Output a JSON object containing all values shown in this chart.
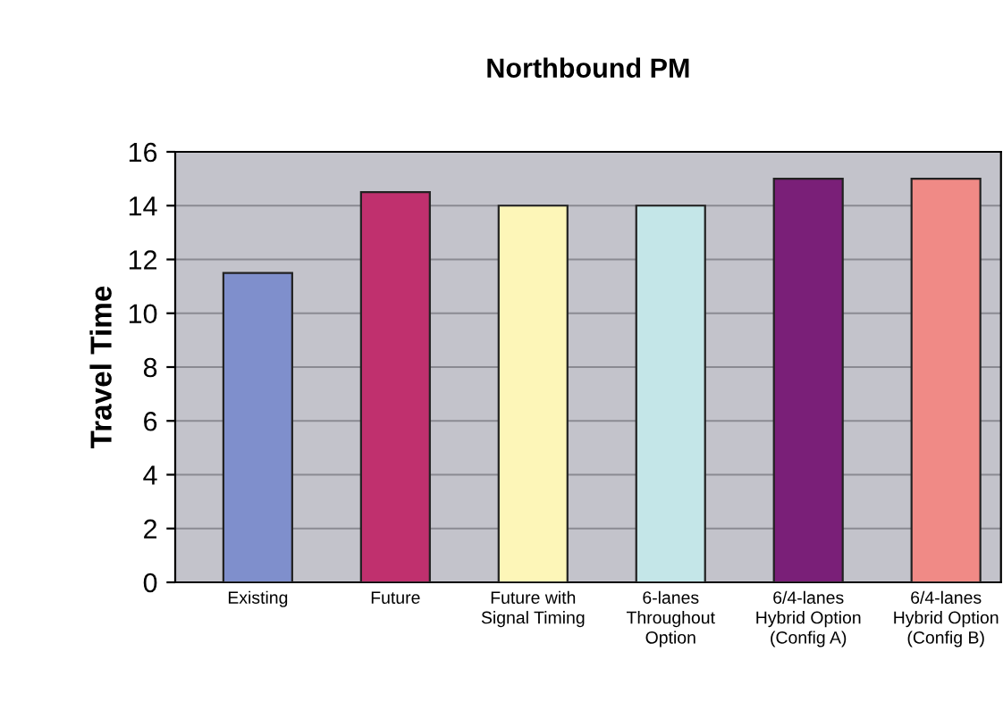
{
  "chart_data": {
    "type": "bar",
    "title": "Northbound PM",
    "ylabel": "Travel Time",
    "categories": [
      "Existing",
      "Future",
      "Future with\nSignal Timing",
      "6-lanes\nThroughout\nOption",
      "6/4-lanes\nHybrid Option\n(Config A)",
      "6/4-lanes\nHybrid Option\n(Config B)"
    ],
    "values": [
      11.5,
      14.5,
      14,
      14,
      15,
      15
    ],
    "colors": [
      "#7f8fcc",
      "#c0306e",
      "#fdf6b8",
      "#c4e6e8",
      "#7a1f78",
      "#f08a86"
    ],
    "ylim": [
      0,
      16
    ],
    "yticks": [
      0,
      2,
      4,
      6,
      8,
      10,
      12,
      14,
      16
    ],
    "grid": "y",
    "legend": false
  }
}
